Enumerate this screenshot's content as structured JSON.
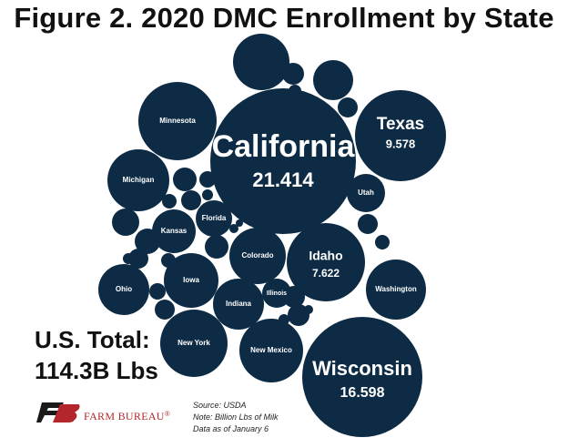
{
  "colors": {
    "bubble": "#0d2b45",
    "bubble_text": "#ffffff",
    "brand_red": "#b3262b"
  },
  "total": {
    "label": "U.S. Total:",
    "value": "114.3B Lbs"
  },
  "brand": {
    "name": "FARM BUREAU",
    "mark": "®"
  },
  "source": {
    "line1": "Source:  USDA",
    "line2": "Note: Billion Lbs of Milk",
    "line3": "Data as of January 6"
  },
  "chart_data": {
    "type": "bubble",
    "title": "Figure 2. 2020 DMC Enrollment by State",
    "unit": "Billion Lbs of Milk",
    "labeled_values": [
      {
        "name": "California",
        "value": 21.414,
        "value_label": "21.414"
      },
      {
        "name": "Wisconsin",
        "value": 16.598,
        "value_label": "16.598"
      },
      {
        "name": "Texas",
        "value": 9.578,
        "value_label": "9.578"
      },
      {
        "name": "Idaho",
        "value": 7.622,
        "value_label": "7.622"
      }
    ],
    "labeled_states": [
      "Minnesota",
      "Michigan",
      "Utah",
      "Florida",
      "Kansas",
      "Colorado",
      "Ohio",
      "Iowa",
      "Washington",
      "Illinois",
      "Indiana",
      "New York",
      "New Mexico"
    ],
    "unlabeled_bubble_count": 28
  }
}
